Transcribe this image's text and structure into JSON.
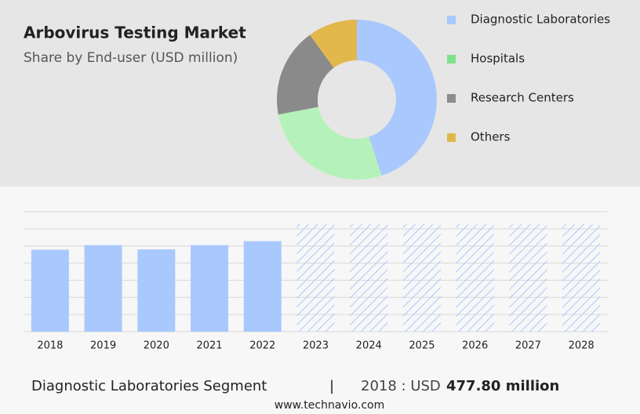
{
  "chart_data": [
    {
      "type": "pie",
      "title": "Arbovirus Testing Market",
      "subtitle": "Share by End-user (USD million)",
      "categories": [
        "Diagnostic Laboratories",
        "Hospitals",
        "Research Centers",
        "Others"
      ],
      "values": [
        45,
        27,
        18,
        10
      ],
      "colors": [
        "#a9c8fd",
        "#b5f2b9",
        "#8a8a8a",
        "#e2b84b"
      ],
      "legend_colors": [
        "#a8c8ff",
        "#7fe08c",
        "#8c8c8c",
        "#e0b84a"
      ],
      "legend": "right"
    },
    {
      "type": "bar",
      "categories": [
        "2018",
        "2019",
        "2020",
        "2021",
        "2022",
        "2023",
        "2024",
        "2025",
        "2026",
        "2027",
        "2028"
      ],
      "values": [
        477.8,
        505,
        480,
        505,
        528,
        null,
        null,
        null,
        null,
        null,
        null
      ],
      "color": "#a9c8fd",
      "forecast_color": "#a9c8fd",
      "ylim": [
        0,
        700
      ],
      "yticks": [
        0,
        100,
        200,
        300,
        400,
        500,
        600,
        700
      ],
      "grid": true
    }
  ],
  "footer": {
    "segment": "Diagnostic Laboratories Segment",
    "separator": "|",
    "year_label": "2018 : USD",
    "value": "477.80 million",
    "source": "www.technavio.com"
  }
}
